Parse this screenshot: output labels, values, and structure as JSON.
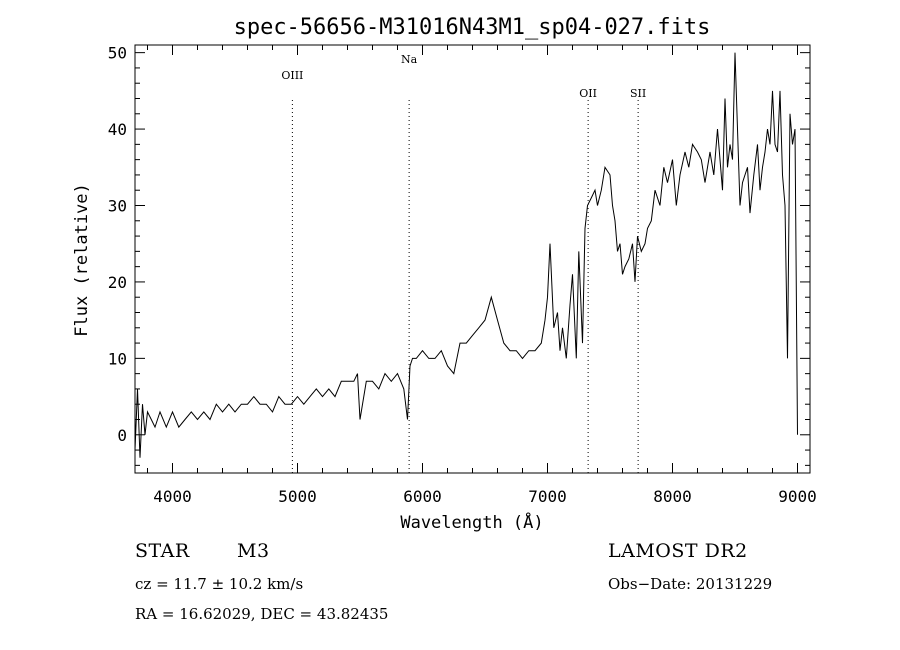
{
  "chart_data": {
    "type": "line",
    "title": "spec-56656-M31016N43M1_sp04-027.fits",
    "xlabel": "Wavelength (Å)",
    "ylabel": "Flux (relative)",
    "xlim": [
      3700,
      9100
    ],
    "ylim": [
      -5,
      51
    ],
    "xticks": [
      4000,
      5000,
      6000,
      7000,
      8000,
      9000
    ],
    "yticks": [
      0,
      10,
      20,
      30,
      40,
      50
    ],
    "grid": false,
    "line_markers": [
      {
        "label": "OIII",
        "x": 4959
      },
      {
        "label": "Na",
        "x": 5893
      },
      {
        "label": "OII",
        "x": 7325
      },
      {
        "label": "SII",
        "x": 7725
      }
    ],
    "series": [
      {
        "x": [
          3700,
          3720,
          3740,
          3760,
          3780,
          3800,
          3830,
          3860,
          3900,
          3950,
          4000,
          4050,
          4100,
          4150,
          4200,
          4250,
          4300,
          4350,
          4400,
          4450,
          4500,
          4550,
          4600,
          4650,
          4700,
          4750,
          4800,
          4850,
          4900,
          4950,
          5000,
          5050,
          5100,
          5150,
          5200,
          5250,
          5300,
          5350,
          5400,
          5450,
          5480,
          5500,
          5550,
          5580,
          5600,
          5650,
          5700,
          5750,
          5800,
          5850,
          5880,
          5900,
          5920,
          5950,
          6000,
          6050,
          6100,
          6150,
          6200,
          6250,
          6300,
          6350,
          6400,
          6450,
          6500,
          6550,
          6600,
          6650,
          6700,
          6750,
          6800,
          6850,
          6900,
          6950,
          6980,
          7000,
          7020,
          7050,
          7080,
          7100,
          7120,
          7150,
          7180,
          7200,
          7230,
          7250,
          7280,
          7300,
          7320,
          7350,
          7380,
          7400,
          7430,
          7460,
          7500,
          7520,
          7540,
          7560,
          7580,
          7600,
          7620,
          7650,
          7680,
          7700,
          7720,
          7750,
          7780,
          7800,
          7830,
          7860,
          7900,
          7930,
          7960,
          8000,
          8030,
          8060,
          8100,
          8130,
          8160,
          8200,
          8230,
          8260,
          8300,
          8330,
          8360,
          8400,
          8420,
          8440,
          8460,
          8480,
          8500,
          8520,
          8540,
          8560,
          8580,
          8600,
          8620,
          8650,
          8680,
          8700,
          8720,
          8740,
          8760,
          8780,
          8800,
          8820,
          8840,
          8860,
          8880,
          8900,
          8920,
          8940,
          8960,
          8980,
          9000
        ],
        "y": [
          -2,
          6,
          -3,
          4,
          0,
          3,
          2,
          1,
          3,
          1,
          3,
          1,
          2,
          3,
          2,
          3,
          2,
          4,
          3,
          4,
          3,
          4,
          4,
          5,
          4,
          4,
          3,
          5,
          4,
          4,
          5,
          4,
          5,
          6,
          5,
          6,
          5,
          7,
          7,
          7,
          8,
          2,
          7,
          7,
          7,
          6,
          8,
          7,
          8,
          6,
          2,
          9,
          10,
          10,
          11,
          10,
          10,
          11,
          9,
          8,
          12,
          12,
          13,
          14,
          15,
          18,
          15,
          12,
          11,
          11,
          10,
          11,
          11,
          12,
          15,
          18,
          25,
          14,
          16,
          11,
          14,
          10,
          17,
          21,
          10,
          24,
          12,
          27,
          30,
          31,
          32,
          30,
          32,
          35,
          34,
          30,
          28,
          24,
          25,
          21,
          22,
          23,
          25,
          20,
          26,
          24,
          25,
          27,
          28,
          32,
          30,
          35,
          33,
          36,
          30,
          34,
          37,
          35,
          38,
          37,
          36,
          33,
          37,
          34,
          40,
          32,
          44,
          35,
          38,
          36,
          50,
          40,
          30,
          33,
          34,
          35,
          29,
          34,
          38,
          32,
          35,
          37,
          40,
          38,
          45,
          38,
          37,
          45,
          34,
          30,
          10,
          42,
          38,
          40,
          0
        ]
      }
    ],
    "info": {
      "class": "STAR",
      "subclass": "M3",
      "survey": "LAMOST DR2",
      "cz": "cz = 11.7 ± 10.2 km/s",
      "obs_date": "Obs−Date: 20131229",
      "radec": "RA =   16.62029, DEC =   43.82435"
    }
  }
}
